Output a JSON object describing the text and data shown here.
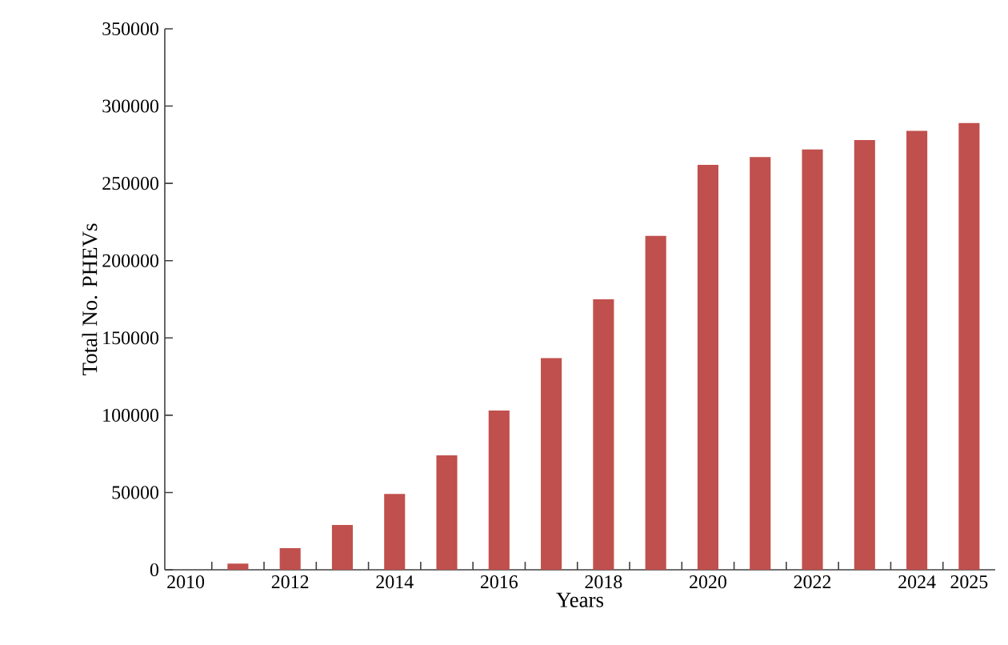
{
  "chart_data": {
    "type": "bar",
    "xlabel": "Years",
    "ylabel": "Total No. PHEVs",
    "x": [
      2011,
      2012,
      2013,
      2014,
      2015,
      2016,
      2017,
      2018,
      2019,
      2020,
      2021,
      2022,
      2023,
      2024,
      2025
    ],
    "values": [
      4000,
      14000,
      29000,
      49000,
      74000,
      103000,
      137000,
      175000,
      216000,
      262000,
      267000,
      272000,
      278000,
      284000,
      289000
    ],
    "color": "#c0504d",
    "xlim": [
      2009.6,
      2025.5
    ],
    "xticks": [
      2010,
      2012,
      2014,
      2016,
      2018,
      2020,
      2022,
      2024,
      2025,
      {
        "value": 2010.5,
        "label": null
      },
      {
        "value": 2011.5,
        "label": null
      },
      {
        "value": 2012.5,
        "label": null
      },
      {
        "value": 2013.5,
        "label": null
      },
      {
        "value": 2014.5,
        "label": null
      },
      {
        "value": 2015.5,
        "label": null
      },
      {
        "value": 2016.5,
        "label": null
      },
      {
        "value": 2017.5,
        "label": null
      },
      {
        "value": 2018.5,
        "label": null
      },
      {
        "value": 2019.5,
        "label": null
      },
      {
        "value": 2020.5,
        "label": null
      },
      {
        "value": 2021.5,
        "label": null
      },
      {
        "value": 2022.5,
        "label": null
      },
      {
        "value": 2023.5,
        "label": null
      },
      {
        "value": 2024.5,
        "label": null
      }
    ],
    "ylim": [
      0,
      350000
    ],
    "yticks": [
      0,
      50000,
      100000,
      150000,
      200000,
      250000,
      300000,
      350000
    ]
  }
}
